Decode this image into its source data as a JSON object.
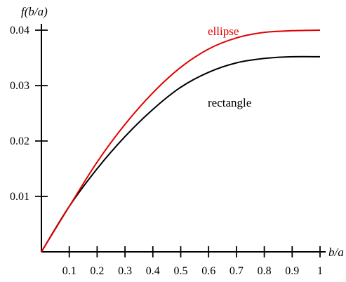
{
  "chart_data": {
    "type": "line",
    "title": "",
    "xlabel": "b/a",
    "ylabel": "f(b/a)",
    "xlim": [
      0,
      1
    ],
    "ylim": [
      0,
      0.04
    ],
    "x_ticks": [
      0.1,
      0.2,
      0.3,
      0.4,
      0.5,
      0.6,
      0.7,
      0.8,
      0.9,
      1
    ],
    "x_tick_labels": [
      "0.1",
      "0.2",
      "0.3",
      "0.4",
      "0.5",
      "0.6",
      "0.7",
      "0.8",
      "0.9",
      "1"
    ],
    "y_ticks": [
      0.01,
      0.02,
      0.03,
      0.04
    ],
    "y_tick_labels": [
      "0.01",
      "0.02",
      "0.03",
      "0.04"
    ],
    "grid": false,
    "x": [
      0,
      0.1,
      0.2,
      0.3,
      0.4,
      0.5,
      0.6,
      0.7,
      0.8,
      0.9,
      1.0
    ],
    "series": [
      {
        "name": "ellipse",
        "color": "#e00000",
        "values": [
          0,
          0.0082,
          0.0162,
          0.023,
          0.0287,
          0.0333,
          0.0366,
          0.0386,
          0.0396,
          0.0399,
          0.04
        ]
      },
      {
        "name": "rectangle",
        "color": "#000000",
        "values": [
          0,
          0.0082,
          0.015,
          0.0208,
          0.0257,
          0.0297,
          0.0324,
          0.0341,
          0.0349,
          0.0352,
          0.0352
        ]
      }
    ]
  }
}
